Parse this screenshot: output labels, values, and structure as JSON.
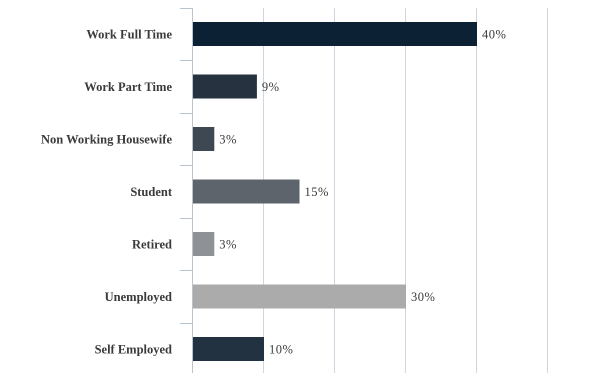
{
  "chart_data": {
    "type": "bar",
    "orientation": "horizontal",
    "categories": [
      "Work Full Time",
      "Work Part Time",
      "Non Working Housewife",
      "Student",
      "Retired",
      "Unemployed",
      "Self Employed"
    ],
    "values": [
      40,
      9,
      3,
      15,
      3,
      30,
      10
    ],
    "value_labels": [
      "40%",
      "9%",
      "3%",
      "15%",
      "3%",
      "30%",
      "10%"
    ],
    "bar_colors": [
      "#0d2134",
      "#26323f",
      "#3e4853",
      "#5e646b",
      "#8e9195",
      "#ababab",
      "#233241"
    ],
    "xlim": [
      0,
      60
    ],
    "x_gridlines": [
      0,
      10,
      20,
      30,
      40,
      50
    ],
    "grid": true,
    "legend": "none",
    "title": "",
    "xlabel": "",
    "ylabel": ""
  }
}
